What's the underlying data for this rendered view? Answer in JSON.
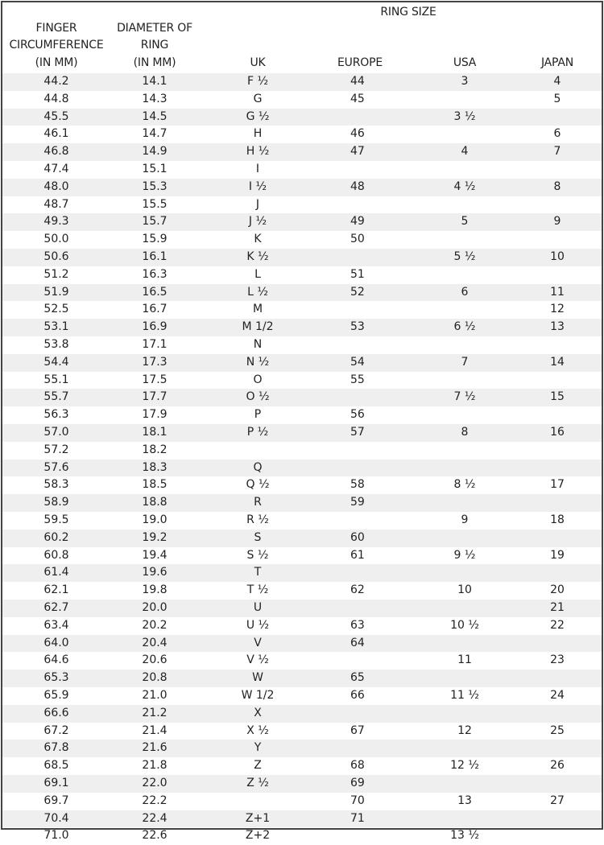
{
  "header": {
    "group_label": "RING SIZE",
    "columns": [
      [
        "FINGER",
        "CIRCUMFERENCE",
        "(IN MM)"
      ],
      [
        "DIAMETER OF",
        "RING",
        "(IN MM)"
      ],
      [
        "UK"
      ],
      [
        "EUROPE"
      ],
      [
        "USA"
      ],
      [
        "JAPAN"
      ]
    ]
  },
  "rows": [
    [
      "44.2",
      "14.1",
      "F ½",
      "44",
      "3",
      "4"
    ],
    [
      "44.8",
      "14.3",
      "G",
      "45",
      "",
      "5"
    ],
    [
      "45.5",
      "14.5",
      "G ½",
      "",
      "3 ½",
      ""
    ],
    [
      "46.1",
      "14.7",
      "H",
      "46",
      "",
      "6"
    ],
    [
      "46.8",
      "14.9",
      "H ½",
      "47",
      "4",
      "7"
    ],
    [
      "47.4",
      "15.1",
      "I",
      "",
      "",
      ""
    ],
    [
      "48.0",
      "15.3",
      "I ½",
      "48",
      "4 ½",
      "8"
    ],
    [
      "48.7",
      "15.5",
      "J",
      "",
      "",
      ""
    ],
    [
      "49.3",
      "15.7",
      "J ½",
      "49",
      "5",
      "9"
    ],
    [
      "50.0",
      "15.9",
      "K",
      "50",
      "",
      ""
    ],
    [
      "50.6",
      "16.1",
      "K ½",
      "",
      "5 ½",
      "10"
    ],
    [
      "51.2",
      "16.3",
      "L",
      "51",
      "",
      ""
    ],
    [
      "51.9",
      "16.5",
      "L ½",
      "52",
      "6",
      "11"
    ],
    [
      "52.5",
      "16.7",
      "M",
      "",
      "",
      "12"
    ],
    [
      "53.1",
      "16.9",
      "M 1/2",
      "53",
      "6 ½",
      "13"
    ],
    [
      "53.8",
      "17.1",
      "N",
      "",
      "",
      ""
    ],
    [
      "54.4",
      "17.3",
      "N ½",
      "54",
      "7",
      "14"
    ],
    [
      "55.1",
      "17.5",
      "O",
      "55",
      "",
      ""
    ],
    [
      "55.7",
      "17.7",
      "O ½",
      "",
      "7 ½",
      "15"
    ],
    [
      "56.3",
      "17.9",
      "P",
      "56",
      "",
      ""
    ],
    [
      "57.0",
      "18.1",
      "P ½",
      "57",
      "8",
      "16"
    ],
    [
      "57.2",
      "18.2",
      "",
      "",
      "",
      ""
    ],
    [
      "57.6",
      "18.3",
      "Q",
      "",
      "",
      ""
    ],
    [
      "58.3",
      "18.5",
      "Q ½",
      "58",
      "8 ½",
      "17"
    ],
    [
      "58.9",
      "18.8",
      "R",
      "59",
      "",
      ""
    ],
    [
      "59.5",
      "19.0",
      "R ½",
      "",
      "9",
      "18"
    ],
    [
      "60.2",
      "19.2",
      "S",
      "60",
      "",
      ""
    ],
    [
      "60.8",
      "19.4",
      "S ½",
      "61",
      "9 ½",
      "19"
    ],
    [
      "61.4",
      "19.6",
      "T",
      "",
      "",
      ""
    ],
    [
      "62.1",
      "19.8",
      "T ½",
      "62",
      "10",
      "20"
    ],
    [
      "62.7",
      "20.0",
      "U",
      "",
      "",
      "21"
    ],
    [
      "63.4",
      "20.2",
      "U ½",
      "63",
      "10 ½",
      "22"
    ],
    [
      "64.0",
      "20.4",
      "V",
      "64",
      "",
      ""
    ],
    [
      "64.6",
      "20.6",
      "V ½",
      "",
      "11",
      "23"
    ],
    [
      "65.3",
      "20.8",
      "W",
      "65",
      "",
      ""
    ],
    [
      "65.9",
      "21.0",
      "W 1/2",
      "66",
      "11 ½",
      "24"
    ],
    [
      "66.6",
      "21.2",
      "X",
      "",
      "",
      ""
    ],
    [
      "67.2",
      "21.4",
      "X ½",
      "67",
      "12",
      "25"
    ],
    [
      "67.8",
      "21.6",
      "Y",
      "",
      "",
      ""
    ],
    [
      "68.5",
      "21.8",
      "Z",
      "68",
      "12 ½",
      "26"
    ],
    [
      "69.1",
      "22.0",
      "Z ½",
      "69",
      "",
      ""
    ],
    [
      "69.7",
      "22.2",
      "",
      "70",
      "13",
      "27"
    ],
    [
      "70.4",
      "22.4",
      "Z+1",
      "71",
      "",
      ""
    ],
    [
      "71.0",
      "22.6",
      "Z+2",
      "",
      "13 ½",
      ""
    ]
  ],
  "colors": {
    "stripe": "#efefef",
    "border": "#444444",
    "text": "#222222"
  }
}
